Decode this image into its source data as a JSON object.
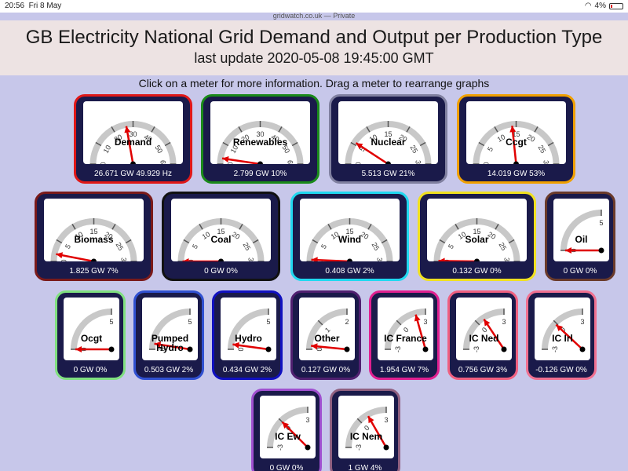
{
  "statusbar": {
    "time": "20:56",
    "date": "Fri 8 May",
    "url": "gridwatch.co.uk — Private",
    "battery": "4%"
  },
  "header": {
    "title": "GB Electricity National Grid Demand and Output per Production Type",
    "update": "last update 2020-05-08 19:45:00 GMT"
  },
  "instruction": "Click on a meter for more information. Drag a meter to rearrange graphs",
  "meters": [
    {
      "name": "Demand",
      "reading": "26.671 GW 49.929 Hz",
      "border": "#e01818",
      "ticks": [
        "0",
        "10",
        "20",
        "30",
        "40",
        "50",
        "60"
      ],
      "value_fraction": 0.444
    },
    {
      "name": "Renewables",
      "reading": "2.799 GW 10%",
      "border": "#1a8a1a",
      "ticks": [
        "0",
        "10",
        "20",
        "30",
        "40",
        "50",
        "60"
      ],
      "value_fraction": 0.047
    },
    {
      "name": "Nuclear",
      "reading": "5.513 GW 21%",
      "border": "#8080a0",
      "ticks": [
        "0",
        "5",
        "10",
        "15",
        "20",
        "25",
        "30"
      ],
      "value_fraction": 0.184
    },
    {
      "name": "Ccgt",
      "reading": "14.019 GW 53%",
      "border": "#f0a000",
      "ticks": [
        "0",
        "5",
        "10",
        "15",
        "20",
        "25",
        "30"
      ],
      "value_fraction": 0.467
    },
    {
      "name": "Biomass",
      "reading": "1.825 GW 7%",
      "border": "#7a1a1a",
      "ticks": [
        "0",
        "5",
        "10",
        "15",
        "20",
        "25",
        "30"
      ],
      "value_fraction": 0.061
    },
    {
      "name": "Coal",
      "reading": "0 GW 0%",
      "border": "#111111",
      "ticks": [
        "0",
        "5",
        "10",
        "15",
        "20",
        "25",
        "30"
      ],
      "value_fraction": 0.0
    },
    {
      "name": "Wind",
      "reading": "0.408 GW 2%",
      "border": "#20d8f0",
      "ticks": [
        "0",
        "5",
        "10",
        "15",
        "20",
        "25",
        "30"
      ],
      "value_fraction": 0.014
    },
    {
      "name": "Solar",
      "reading": "0.132 GW 0%",
      "border": "#f0e020",
      "ticks": [
        "0",
        "5",
        "10",
        "15",
        "20",
        "25",
        "30"
      ],
      "value_fraction": 0.004
    },
    {
      "name": "Oil",
      "reading": "0 GW 0%",
      "border": "#6a3a2a",
      "ticks": [
        "0",
        "5"
      ],
      "value_fraction": 0.0
    },
    {
      "name": "Ocgt",
      "reading": "0 GW 0%",
      "border": "#80e080",
      "ticks": [
        "0",
        "5"
      ],
      "value_fraction": 0.0
    },
    {
      "name": "Pumped Hydro",
      "reading": "0.503 GW 2%",
      "border": "#3050d0",
      "ticks": [
        "0",
        "5"
      ],
      "value_fraction": 0.1
    },
    {
      "name": "Hydro",
      "reading": "0.434 GW 2%",
      "border": "#1010c0",
      "ticks": [
        "0",
        "5"
      ],
      "value_fraction": 0.087
    },
    {
      "name": "Other",
      "reading": "0.127 GW 0%",
      "border": "#502070",
      "ticks": [
        "0",
        "1",
        "2"
      ],
      "value_fraction": 0.063
    },
    {
      "name": "IC France",
      "reading": "1.954 GW 7%",
      "border": "#e02090",
      "ticks": [
        "-3",
        "0",
        "3"
      ],
      "value_fraction": 0.826
    },
    {
      "name": "IC Ned",
      "reading": "0.756 GW 3%",
      "border": "#f06080",
      "ticks": [
        "-3",
        "0",
        "3"
      ],
      "value_fraction": 0.626
    },
    {
      "name": "IC Irl",
      "reading": "-0.126 GW 0%",
      "border": "#f07090",
      "ticks": [
        "-3",
        "0",
        "3"
      ],
      "value_fraction": 0.479
    },
    {
      "name": "IC Ew",
      "reading": "0 GW 0%",
      "border": "#a050d0",
      "ticks": [
        "-3",
        "0",
        "3"
      ],
      "value_fraction": 0.5
    },
    {
      "name": "IC Nem",
      "reading": "1 GW 4%",
      "border": "#906080",
      "ticks": [
        "-3",
        "0",
        "3"
      ],
      "value_fraction": 0.667
    }
  ]
}
